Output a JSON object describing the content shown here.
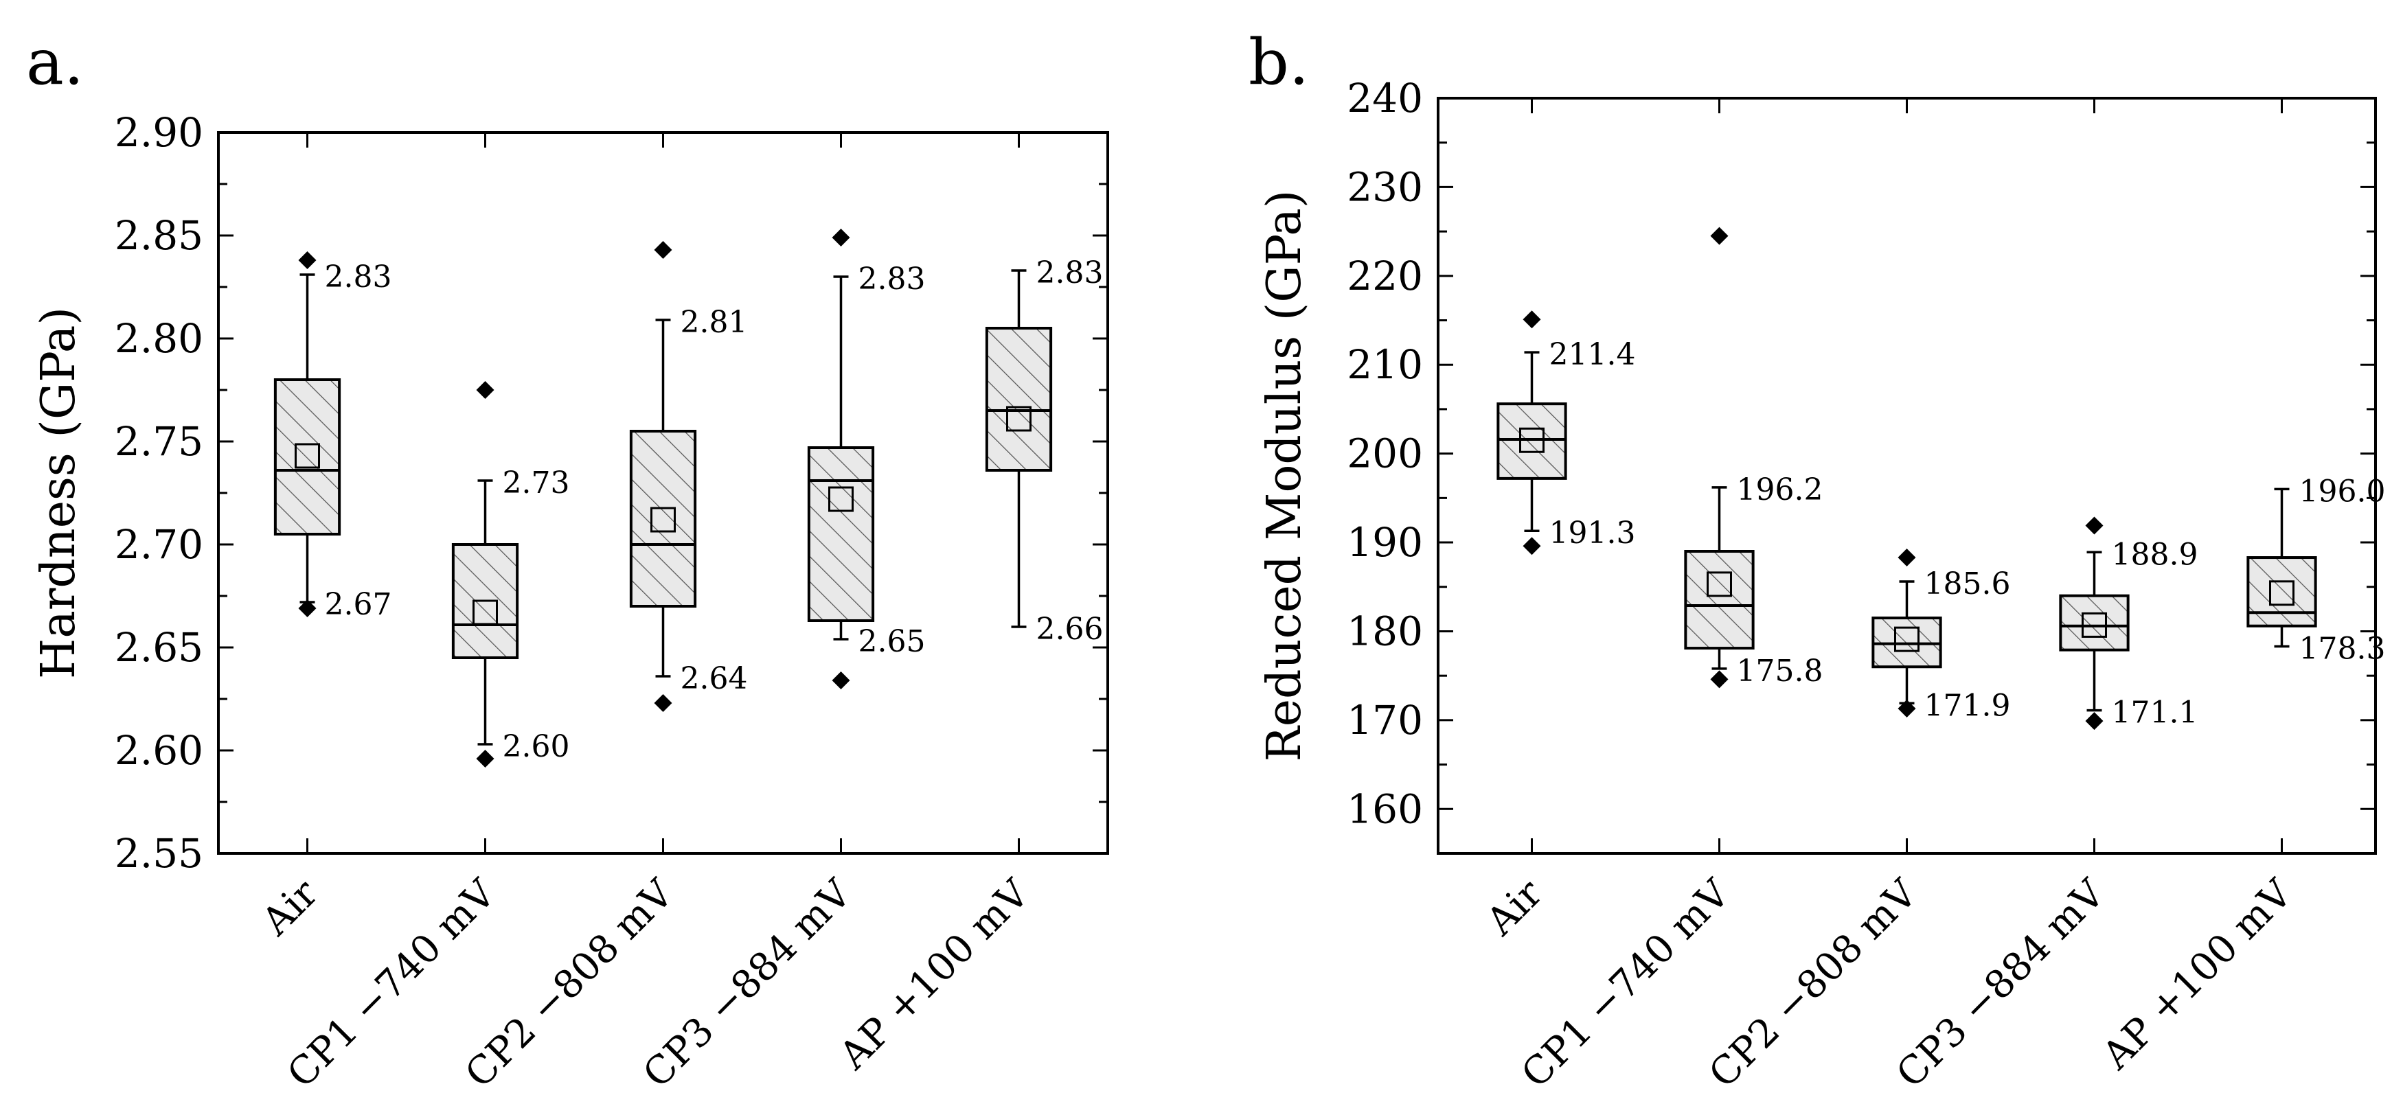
{
  "chart_data": [
    {
      "type": "box",
      "panel_label": "a.",
      "title": "",
      "xlabel": "",
      "ylabel": "Hardness (GPa)",
      "ylim": [
        2.55,
        2.9
      ],
      "yticks": [
        "2.55",
        "2.60",
        "2.65",
        "2.70",
        "2.75",
        "2.80",
        "2.85",
        "2.90"
      ],
      "ytick_values": [
        2.55,
        2.6,
        2.65,
        2.7,
        2.75,
        2.8,
        2.85,
        2.9
      ],
      "minor_ytick_step": 0.025,
      "categories": [
        "Air",
        "CP1 −740 mV",
        "CP2 −808 mV",
        "CP3 −884 mV",
        "AP +100 mV"
      ],
      "boxes": [
        {
          "q1": 2.705,
          "median": 2.736,
          "q3": 2.78,
          "mean": 2.743,
          "whisker_low": 2.672,
          "whisker_high": 2.831,
          "whisker_low_label": "2.67",
          "whisker_high_label": "2.83",
          "outliers": [
            2.838,
            2.669
          ]
        },
        {
          "q1": 2.645,
          "median": 2.661,
          "q3": 2.7,
          "mean": 2.667,
          "whisker_low": 2.603,
          "whisker_high": 2.731,
          "whisker_low_label": "2.60",
          "whisker_high_label": "2.73",
          "outliers": [
            2.775,
            2.596
          ]
        },
        {
          "q1": 2.67,
          "median": 2.7,
          "q3": 2.755,
          "mean": 2.712,
          "whisker_low": 2.636,
          "whisker_high": 2.809,
          "whisker_low_label": "2.64",
          "whisker_high_label": "2.81",
          "outliers": [
            2.843,
            2.623
          ]
        },
        {
          "q1": 2.663,
          "median": 2.731,
          "q3": 2.747,
          "mean": 2.722,
          "whisker_low": 2.654,
          "whisker_high": 2.83,
          "whisker_low_label": "2.65",
          "whisker_high_label": "2.83",
          "outliers": [
            2.849,
            2.634
          ]
        },
        {
          "q1": 2.736,
          "median": 2.765,
          "q3": 2.805,
          "mean": 2.761,
          "whisker_low": 2.66,
          "whisker_high": 2.833,
          "whisker_low_label": "2.66",
          "whisker_high_label": "2.83",
          "outliers": []
        }
      ]
    },
    {
      "type": "box",
      "panel_label": "b.",
      "title": "",
      "xlabel": "",
      "ylabel": "Reduced Modulus (GPa)",
      "ylim": [
        155,
        240
      ],
      "yticks": [
        "160",
        "170",
        "180",
        "190",
        "200",
        "210",
        "220",
        "230",
        "240"
      ],
      "ytick_values": [
        160,
        170,
        180,
        190,
        200,
        210,
        220,
        230,
        240
      ],
      "minor_ytick_step": 5,
      "categories": [
        "Air",
        "CP1 −740 mV",
        "CP2 −808 mV",
        "CP3 −884 mV",
        "AP +100 mV"
      ],
      "boxes": [
        {
          "q1": 197.2,
          "median": 201.6,
          "q3": 205.6,
          "mean": 201.5,
          "whisker_low": 191.3,
          "whisker_high": 211.4,
          "whisker_low_label": "191.3",
          "whisker_high_label": "211.4",
          "outliers": [
            215.1,
            189.6
          ]
        },
        {
          "q1": 178.1,
          "median": 182.9,
          "q3": 189.0,
          "mean": 185.3,
          "whisker_low": 175.8,
          "whisker_high": 196.2,
          "whisker_low_label": "175.8",
          "whisker_high_label": "196.2",
          "outliers": [
            224.5,
            174.6
          ]
        },
        {
          "q1": 176.0,
          "median": 178.6,
          "q3": 181.5,
          "mean": 179.1,
          "whisker_low": 171.9,
          "whisker_high": 185.6,
          "whisker_low_label": "171.9",
          "whisker_high_label": "185.6",
          "outliers": [
            188.3,
            171.3
          ]
        },
        {
          "q1": 177.9,
          "median": 180.6,
          "q3": 184.0,
          "mean": 180.7,
          "whisker_low": 171.1,
          "whisker_high": 188.9,
          "whisker_low_label": "171.1",
          "whisker_high_label": "188.9",
          "outliers": [
            191.9,
            169.9
          ]
        },
        {
          "q1": 180.6,
          "median": 182.1,
          "q3": 188.3,
          "mean": 184.3,
          "whisker_low": 178.3,
          "whisker_high": 196.0,
          "whisker_low_label": "178.3",
          "whisker_high_label": "196.0",
          "outliers": []
        }
      ]
    }
  ]
}
